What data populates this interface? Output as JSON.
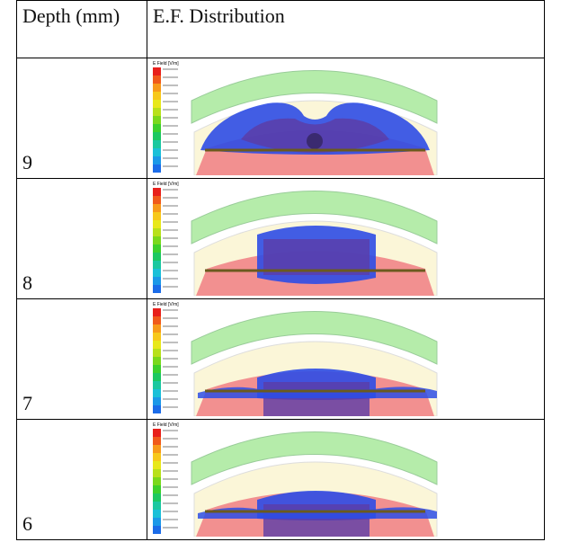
{
  "table": {
    "header": [
      "Depth (mm)",
      "E.F. Distribution"
    ],
    "rows": [
      [
        "9"
      ],
      [
        "8"
      ],
      [
        "7"
      ],
      [
        "6"
      ]
    ],
    "legend_title": "E Field [V/m]"
  }
}
